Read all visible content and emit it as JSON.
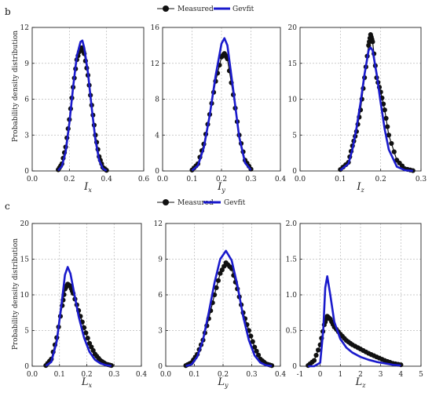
{
  "figure": {
    "panel_labels": [
      "b",
      "c"
    ],
    "ylabel": "Probability density distribution",
    "legend": {
      "measured": "Measured",
      "fit": "Gevfit"
    }
  },
  "colors": {
    "measured": "#111111",
    "fit": "#1a1acc",
    "grid": "#bbbbbb"
  },
  "chart_data": [
    {
      "type": "line",
      "panel": "b",
      "xlabel_main": "I",
      "xlabel_sub": "x",
      "xlim": [
        0,
        0.6
      ],
      "ylim": [
        0,
        12
      ],
      "xticks": [
        "0.0",
        "0.2",
        "0.4",
        "0.6"
      ],
      "yticks": [
        "0",
        "3",
        "6",
        "9",
        "12"
      ],
      "series": [
        {
          "name": "Measured",
          "x": [
            0.14,
            0.16,
            0.18,
            0.2,
            0.22,
            0.24,
            0.26,
            0.27,
            0.28,
            0.3,
            0.32,
            0.34,
            0.36,
            0.38,
            0.4
          ],
          "y": [
            0.1,
            0.6,
            2.0,
            4.3,
            7.0,
            9.3,
            10.3,
            10.3,
            9.8,
            8.0,
            5.5,
            3.0,
            1.2,
            0.3,
            0.05
          ]
        },
        {
          "name": "Gevfit",
          "x": [
            0.14,
            0.16,
            0.18,
            0.2,
            0.22,
            0.24,
            0.26,
            0.27,
            0.28,
            0.3,
            0.32,
            0.34,
            0.36,
            0.38,
            0.4
          ],
          "y": [
            0.05,
            0.4,
            1.6,
            4.0,
            7.0,
            9.6,
            10.8,
            10.9,
            10.3,
            8.2,
            5.3,
            2.6,
            0.9,
            0.2,
            0.02
          ]
        }
      ]
    },
    {
      "type": "line",
      "panel": "b",
      "xlabel_main": "I",
      "xlabel_sub": "y",
      "xlim": [
        0,
        0.4
      ],
      "ylim": [
        0,
        16
      ],
      "xticks": [
        "0.0",
        "0.1",
        "0.2",
        "0.3",
        "0.4"
      ],
      "yticks": [
        "0",
        "4",
        "8",
        "12",
        "16"
      ],
      "series": [
        {
          "name": "Measured",
          "x": [
            0.1,
            0.12,
            0.14,
            0.16,
            0.18,
            0.2,
            0.21,
            0.22,
            0.24,
            0.26,
            0.28,
            0.3
          ],
          "y": [
            0.1,
            0.8,
            3.0,
            6.3,
            10.0,
            12.7,
            13.1,
            12.5,
            8.5,
            4.0,
            1.2,
            0.2
          ]
        },
        {
          "name": "Gevfit",
          "x": [
            0.1,
            0.12,
            0.14,
            0.16,
            0.18,
            0.2,
            0.21,
            0.22,
            0.24,
            0.26,
            0.28,
            0.3
          ],
          "y": [
            0.05,
            0.6,
            2.6,
            6.2,
            10.6,
            14.2,
            14.8,
            14.0,
            9.0,
            3.8,
            0.9,
            0.1
          ]
        }
      ]
    },
    {
      "type": "line",
      "panel": "b",
      "xlabel_main": "I",
      "xlabel_sub": "z",
      "xlim": [
        0,
        0.3
      ],
      "ylim": [
        0,
        20
      ],
      "xticks": [
        "0.0",
        "0.1",
        "0.2",
        "0.3"
      ],
      "yticks": [
        "0",
        "5",
        "10",
        "15",
        "20"
      ],
      "series": [
        {
          "name": "Measured",
          "x": [
            0.1,
            0.12,
            0.13,
            0.14,
            0.15,
            0.16,
            0.17,
            0.175,
            0.18,
            0.19,
            0.2,
            0.21,
            0.22,
            0.24,
            0.26,
            0.28
          ],
          "y": [
            0.2,
            1.2,
            3.5,
            5.5,
            8.5,
            13.0,
            17.5,
            19.0,
            18.0,
            13.0,
            11.0,
            8.5,
            5.0,
            1.5,
            0.3,
            0.05
          ]
        },
        {
          "name": "Gevfit",
          "x": [
            0.1,
            0.12,
            0.13,
            0.14,
            0.15,
            0.16,
            0.17,
            0.175,
            0.18,
            0.19,
            0.2,
            0.21,
            0.22,
            0.24,
            0.26,
            0.28
          ],
          "y": [
            0.1,
            1.0,
            3.0,
            6.0,
            9.5,
            13.5,
            16.8,
            17.2,
            16.8,
            13.5,
            9.5,
            5.8,
            3.0,
            0.6,
            0.1,
            0.01
          ]
        }
      ]
    },
    {
      "type": "line",
      "panel": "c",
      "xlabel_main": "L",
      "xlabel_sub": "x",
      "xlim": [
        0,
        0.4
      ],
      "ylim": [
        0,
        20
      ],
      "xticks": [
        "0.0",
        "0.1",
        "0.2",
        "0.3",
        "0.4"
      ],
      "yticks": [
        "0",
        "5",
        "10",
        "15",
        "20"
      ],
      "series": [
        {
          "name": "Measured",
          "x": [
            0.05,
            0.07,
            0.09,
            0.11,
            0.12,
            0.13,
            0.14,
            0.15,
            0.17,
            0.19,
            0.21,
            0.23,
            0.25,
            0.27,
            0.29
          ],
          "y": [
            0.1,
            1.0,
            4.0,
            8.5,
            10.8,
            11.5,
            11.2,
            10.2,
            7.8,
            5.4,
            3.2,
            1.7,
            0.8,
            0.3,
            0.1
          ]
        },
        {
          "name": "Gevfit",
          "x": [
            0.05,
            0.07,
            0.09,
            0.11,
            0.12,
            0.13,
            0.14,
            0.15,
            0.17,
            0.19,
            0.21,
            0.23,
            0.25,
            0.27,
            0.29
          ],
          "y": [
            0.05,
            0.6,
            3.5,
            9.5,
            12.8,
            13.9,
            13.0,
            11.0,
            7.0,
            4.0,
            2.0,
            0.9,
            0.4,
            0.15,
            0.05
          ]
        }
      ]
    },
    {
      "type": "line",
      "panel": "c",
      "xlabel_main": "L",
      "xlabel_sub": "y",
      "xlim": [
        0,
        0.4
      ],
      "ylim": [
        0,
        12
      ],
      "xticks": [
        "0.0",
        "0.1",
        "0.2",
        "0.3",
        "0.4"
      ],
      "yticks": [
        "0",
        "3",
        "6",
        "9",
        "12"
      ],
      "series": [
        {
          "name": "Measured",
          "x": [
            0.07,
            0.09,
            0.11,
            0.13,
            0.15,
            0.17,
            0.19,
            0.21,
            0.23,
            0.25,
            0.27,
            0.29,
            0.31,
            0.33,
            0.35,
            0.37
          ],
          "y": [
            0.05,
            0.3,
            1.0,
            2.2,
            4.0,
            6.0,
            7.8,
            8.7,
            8.2,
            6.5,
            4.5,
            3.0,
            1.6,
            0.6,
            0.2,
            0.05
          ]
        },
        {
          "name": "Gevfit",
          "x": [
            0.07,
            0.09,
            0.11,
            0.13,
            0.15,
            0.17,
            0.19,
            0.21,
            0.23,
            0.25,
            0.27,
            0.29,
            0.31,
            0.33,
            0.35,
            0.37
          ],
          "y": [
            0.02,
            0.15,
            0.8,
            2.2,
            4.5,
            7.0,
            9.0,
            9.7,
            8.9,
            6.8,
            4.2,
            2.2,
            0.9,
            0.3,
            0.08,
            0.02
          ]
        }
      ]
    },
    {
      "type": "line",
      "panel": "c",
      "xlabel_main": "L",
      "xlabel_sub": "z",
      "xlim": [
        -1,
        5
      ],
      "ylim": [
        0,
        2.0
      ],
      "xticks": [
        "-1",
        "0",
        "1",
        "2",
        "3",
        "4",
        "5"
      ],
      "yticks": [
        "0",
        "0.5",
        "1.0",
        "1.5",
        "2.0"
      ],
      "series": [
        {
          "name": "Measured",
          "x": [
            -0.6,
            -0.3,
            0.0,
            0.2,
            0.35,
            0.5,
            0.7,
            1.0,
            1.3,
            1.6,
            2.0,
            2.4,
            2.8,
            3.2,
            3.6,
            4.0
          ],
          "y": [
            0.01,
            0.08,
            0.3,
            0.58,
            0.7,
            0.66,
            0.55,
            0.45,
            0.36,
            0.3,
            0.24,
            0.18,
            0.13,
            0.08,
            0.04,
            0.02
          ]
        },
        {
          "name": "Gevfit",
          "x": [
            -0.6,
            -0.3,
            0.0,
            0.15,
            0.25,
            0.35,
            0.5,
            0.7,
            1.0,
            1.3,
            1.6,
            2.0,
            2.4,
            2.8,
            3.2,
            3.6,
            4.0
          ],
          "y": [
            0.0,
            0.0,
            0.05,
            0.5,
            1.1,
            1.26,
            1.0,
            0.62,
            0.38,
            0.26,
            0.19,
            0.13,
            0.09,
            0.06,
            0.04,
            0.02,
            0.01
          ]
        }
      ]
    }
  ]
}
